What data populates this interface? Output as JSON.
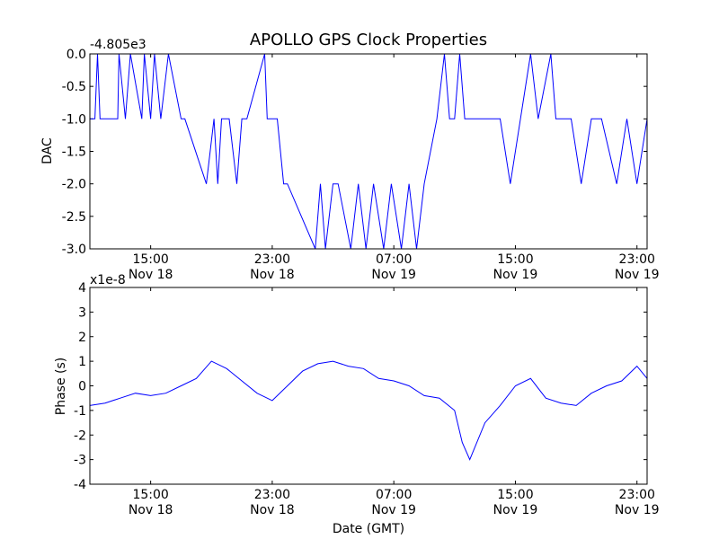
{
  "figure_title": "APOLLO GPS Clock Properties",
  "chart_data": [
    {
      "type": "line",
      "title": "APOLLO GPS Clock Properties",
      "ylabel": "DAC",
      "xlabel": "",
      "offset_label": "-4.805e3",
      "ylim": [
        -3.0,
        0.0
      ],
      "yticks": [
        "0.0",
        "-0.5",
        "-1.0",
        "-1.5",
        "-2.0",
        "-2.5",
        "-3.0"
      ],
      "ytick_values": [
        0.0,
        -0.5,
        -1.0,
        -1.5,
        -2.0,
        -2.5,
        -3.0
      ],
      "xticks": [
        {
          "time": "15:00",
          "date": "Nov 18"
        },
        {
          "time": "23:00",
          "date": "Nov 18"
        },
        {
          "time": "07:00",
          "date": "Nov 19"
        },
        {
          "time": "15:00",
          "date": "Nov 19"
        },
        {
          "time": "23:00",
          "date": "Nov 19"
        }
      ],
      "xlim": [
        "Nov 18 11:00",
        "Nov 19 23:40"
      ],
      "color": "#0000ff",
      "series": [
        {
          "x": [
            "Nov 18 11:00",
            "Nov 18 11:20",
            "Nov 18 11:30",
            "Nov 18 11:40",
            "Nov 18 12:50",
            "Nov 18 12:55",
            "Nov 18 13:20",
            "Nov 18 13:40",
            "Nov 18 14:25",
            "Nov 18 14:35",
            "Nov 18 15:00",
            "Nov 18 15:15",
            "Nov 18 15:40",
            "Nov 18 16:10",
            "Nov 18 17:00",
            "Nov 18 17:15",
            "Nov 18 18:40",
            "Nov 18 19:10",
            "Nov 18 19:25",
            "Nov 18 19:40",
            "Nov 18 20:10",
            "Nov 18 20:40",
            "Nov 18 21:00",
            "Nov 18 21:20",
            "Nov 18 22:30",
            "Nov 18 22:40",
            "Nov 18 23:20",
            "Nov 18 23:45",
            "Nov 19 00:00",
            "Nov 19 01:50",
            "Nov 19 02:10",
            "Nov 19 02:30",
            "Nov 19 03:00",
            "Nov 19 03:20",
            "Nov 19 04:10",
            "Nov 19 04:40",
            "Nov 19 05:10",
            "Nov 19 05:40",
            "Nov 19 06:20",
            "Nov 19 06:50",
            "Nov 19 07:30",
            "Nov 19 08:00",
            "Nov 19 08:30",
            "Nov 19 09:00",
            "Nov 19 09:50",
            "Nov 19 10:20",
            "Nov 19 10:40",
            "Nov 19 11:00",
            "Nov 19 11:20",
            "Nov 19 11:40",
            "Nov 19 12:00",
            "Nov 19 12:20",
            "Nov 19 14:00",
            "Nov 19 14:40",
            "Nov 19 15:20",
            "Nov 19 16:00",
            "Nov 19 16:30",
            "Nov 19 17:20",
            "Nov 19 17:40",
            "Nov 19 18:40",
            "Nov 19 19:20",
            "Nov 19 20:00",
            "Nov 19 20:40",
            "Nov 19 21:40",
            "Nov 19 22:20",
            "Nov 19 23:00",
            "Nov 19 23:40"
          ],
          "y": [
            -1.0,
            -1.0,
            0.0,
            -1.0,
            -1.0,
            0.0,
            -1.0,
            0.0,
            -1.0,
            0.0,
            -1.0,
            0.0,
            -1.0,
            0.0,
            -1.0,
            -1.0,
            -2.0,
            -1.0,
            -2.0,
            -1.0,
            -1.0,
            -2.0,
            -1.0,
            -1.0,
            0.0,
            -1.0,
            -1.0,
            -2.0,
            -2.0,
            -3.0,
            -2.0,
            -3.0,
            -2.0,
            -2.0,
            -3.0,
            -2.0,
            -3.0,
            -2.0,
            -3.0,
            -2.0,
            -3.0,
            -2.0,
            -3.0,
            -2.0,
            -1.0,
            0.0,
            -1.0,
            -1.0,
            0.0,
            -1.0,
            -1.0,
            -1.0,
            -1.0,
            -2.0,
            -1.0,
            0.0,
            -1.0,
            0.0,
            -1.0,
            -1.0,
            -2.0,
            -1.0,
            -1.0,
            -2.0,
            -1.0,
            -2.0,
            -1.0
          ]
        }
      ]
    },
    {
      "type": "line",
      "title": "",
      "ylabel": "Phase (s)",
      "xlabel": "Date (GMT)",
      "offset_label": "x1e-8",
      "ylim": [
        -4,
        4
      ],
      "yticks": [
        "4",
        "3",
        "2",
        "1",
        "0",
        "-1",
        "-2",
        "-3",
        "-4"
      ],
      "ytick_values": [
        4,
        3,
        2,
        1,
        0,
        -1,
        -2,
        -3,
        -4
      ],
      "xticks": [
        {
          "time": "15:00",
          "date": "Nov 18"
        },
        {
          "time": "23:00",
          "date": "Nov 18"
        },
        {
          "time": "07:00",
          "date": "Nov 19"
        },
        {
          "time": "15:00",
          "date": "Nov 19"
        },
        {
          "time": "23:00",
          "date": "Nov 19"
        }
      ],
      "xlim": [
        "Nov 18 11:00",
        "Nov 19 23:40"
      ],
      "color": "#0000ff",
      "series": [
        {
          "x": [
            "Nov 18 11:00",
            "Nov 18 12:00",
            "Nov 18 13:00",
            "Nov 18 14:00",
            "Nov 18 15:00",
            "Nov 18 16:00",
            "Nov 18 17:00",
            "Nov 18 18:00",
            "Nov 18 19:00",
            "Nov 18 20:00",
            "Nov 18 21:00",
            "Nov 18 22:00",
            "Nov 18 23:00",
            "Nov 19 00:00",
            "Nov 19 01:00",
            "Nov 19 02:00",
            "Nov 19 03:00",
            "Nov 19 04:00",
            "Nov 19 05:00",
            "Nov 19 06:00",
            "Nov 19 07:00",
            "Nov 19 08:00",
            "Nov 19 09:00",
            "Nov 19 10:00",
            "Nov 19 11:00",
            "Nov 19 11:30",
            "Nov 19 12:00",
            "Nov 19 13:00",
            "Nov 19 14:00",
            "Nov 19 15:00",
            "Nov 19 16:00",
            "Nov 19 17:00",
            "Nov 19 18:00",
            "Nov 19 19:00",
            "Nov 19 20:00",
            "Nov 19 21:00",
            "Nov 19 22:00",
            "Nov 19 23:00",
            "Nov 19 23:40"
          ],
          "y": [
            -0.8,
            -0.7,
            -0.5,
            -0.3,
            -0.4,
            -0.3,
            0.0,
            0.3,
            1.0,
            0.7,
            0.2,
            -0.3,
            -0.6,
            0.0,
            0.6,
            0.9,
            1.0,
            0.8,
            0.7,
            0.3,
            0.2,
            0.0,
            -0.4,
            -0.5,
            -1.0,
            -2.3,
            -3.0,
            -1.5,
            -0.8,
            0.0,
            0.3,
            -0.5,
            -0.7,
            -0.8,
            -0.3,
            0.0,
            0.2,
            0.8,
            0.3
          ]
        }
      ]
    }
  ]
}
